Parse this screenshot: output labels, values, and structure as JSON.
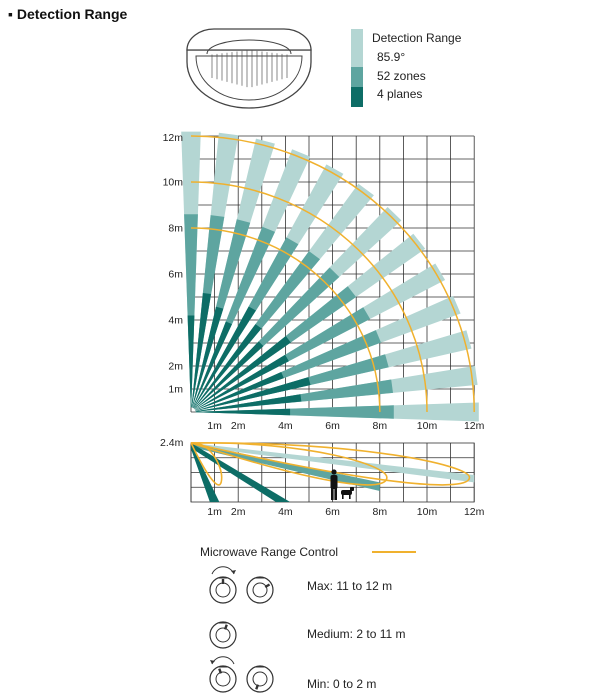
{
  "heading": "▪ Detection Range",
  "legend": {
    "title": "Detection Range",
    "items": [
      {
        "label": "85.9°",
        "color": "#b4d6d3"
      },
      {
        "label": "52 zones",
        "color": "#5ea5a0"
      },
      {
        "label": "4 planes",
        "color": "#0d6d66"
      }
    ]
  },
  "top_view": {
    "y_ticks": [
      {
        "label": "12m",
        "value": 12
      },
      {
        "label": "10m",
        "value": 10
      },
      {
        "label": "8m",
        "value": 8
      },
      {
        "label": "6m",
        "value": 6
      },
      {
        "label": "4m",
        "value": 4
      },
      {
        "label": "2m",
        "value": 2
      },
      {
        "label": "1m",
        "value": 1
      }
    ],
    "x_ticks": [
      {
        "label": "1m",
        "value": 1
      },
      {
        "label": "2m",
        "value": 2
      },
      {
        "label": "4m",
        "value": 4
      },
      {
        "label": "6m",
        "value": 6
      },
      {
        "label": "8m",
        "value": 8
      },
      {
        "label": "10m",
        "value": 10
      },
      {
        "label": "12m",
        "value": 12
      }
    ],
    "microwave_arcs_m": [
      8,
      10,
      12
    ]
  },
  "side_view": {
    "height_label": "2.4m",
    "height_m": 2.4,
    "x_ticks": [
      {
        "label": "1m",
        "value": 1
      },
      {
        "label": "2m",
        "value": 2
      },
      {
        "label": "4m",
        "value": 4
      },
      {
        "label": "6m",
        "value": 6
      },
      {
        "label": "8m",
        "value": 8
      },
      {
        "label": "10m",
        "value": 10
      },
      {
        "label": "12m",
        "value": 12
      }
    ]
  },
  "microwave": {
    "title": "Microwave Range Control",
    "line_color": "#f0b12e",
    "settings": [
      {
        "label": "Max: 11 to 12 m"
      },
      {
        "label": "Medium: 2 to 11 m"
      },
      {
        "label": "Min: 0 to 2 m"
      }
    ]
  },
  "colors": {
    "far": "#b4d6d3",
    "mid": "#5ea5a0",
    "near": "#0d6d66",
    "arc": "#f0b12e"
  }
}
